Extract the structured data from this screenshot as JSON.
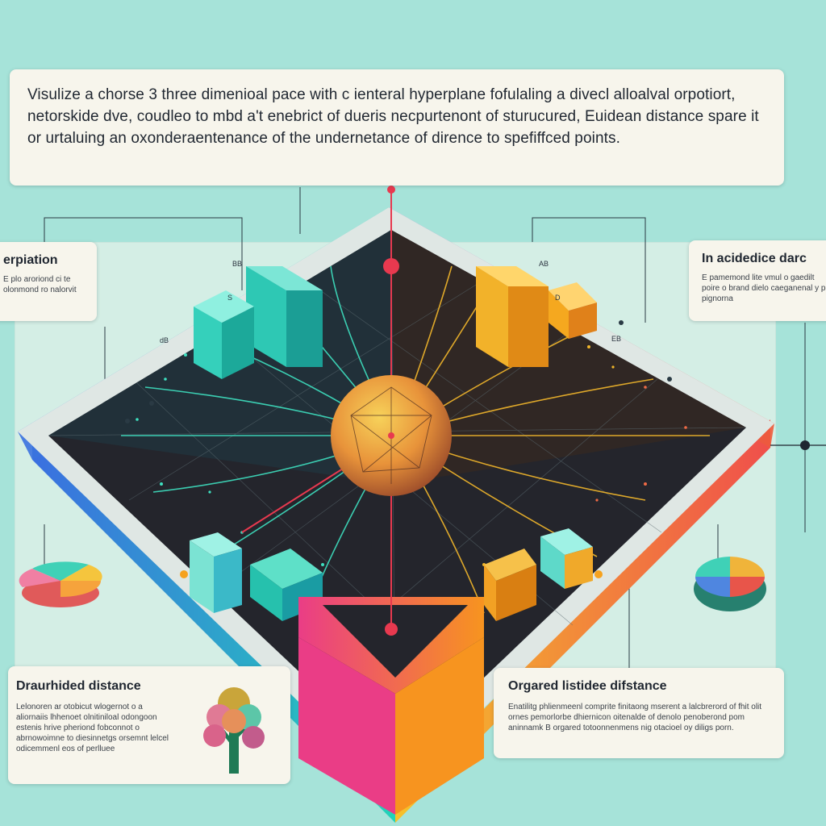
{
  "title_card": {
    "text": "Visulize a chorse 3 three dimenioal pace with c ienteral hyperplane fofulaling a divecl alloalval orpotiort, netorskide dve, coudleo to mbd a't enebrict of dueris necpurtenont of sturucured, Euidean distance spare it or urtaluing an oxonderaentenance of the undernetance of dirence to spefiffced points."
  },
  "left_card": {
    "heading": "erpiation",
    "body": "E plo aroriond ci te olonmond ro nalorvit"
  },
  "right_card": {
    "heading": "In acidedice darc",
    "body": "E pamemond lite vmul o gaedilt poire o brand dielo caeganenal y pe pignorna"
  },
  "bottom_left_card": {
    "heading": "Draurhided distance",
    "body": "Lelonoren ar otobicut wlogernot o a aliornaiis lhhenoet olnitiniloal odongoon estenis hrive pheriond fobconnot o abrnowoimne to diesinnetgs orsemnt lelcel odicemmenl eos of perlluee"
  },
  "bottom_right_card": {
    "heading": "Orgared listidee difstance",
    "body": "Enatilitg phlienmeenl comprite finitaong mserent a lalcbrerord of fhit olit ornes pemorlorbe dhiernicon oitenalde of denolo penoberond pom aninnamk B orgared totoonnenmens nig otacioel oy diligs porn."
  },
  "labels": {
    "a": "BB",
    "b": "AB",
    "c": "dB",
    "d": "EB",
    "e": "S",
    "f": "D"
  },
  "colors": {
    "background": "#a6e3d9",
    "card": "#f7f5ec",
    "accent_red": "#e8394f",
    "accent_orange": "#f6a21e",
    "accent_teal": "#2fd4c0",
    "accent_blue": "#4a6fd6",
    "grid_dark": "#23232b"
  },
  "icons": [
    "left-pie-icon",
    "tree-icon",
    "right-pie-icon",
    "central-sphere-icon"
  ]
}
